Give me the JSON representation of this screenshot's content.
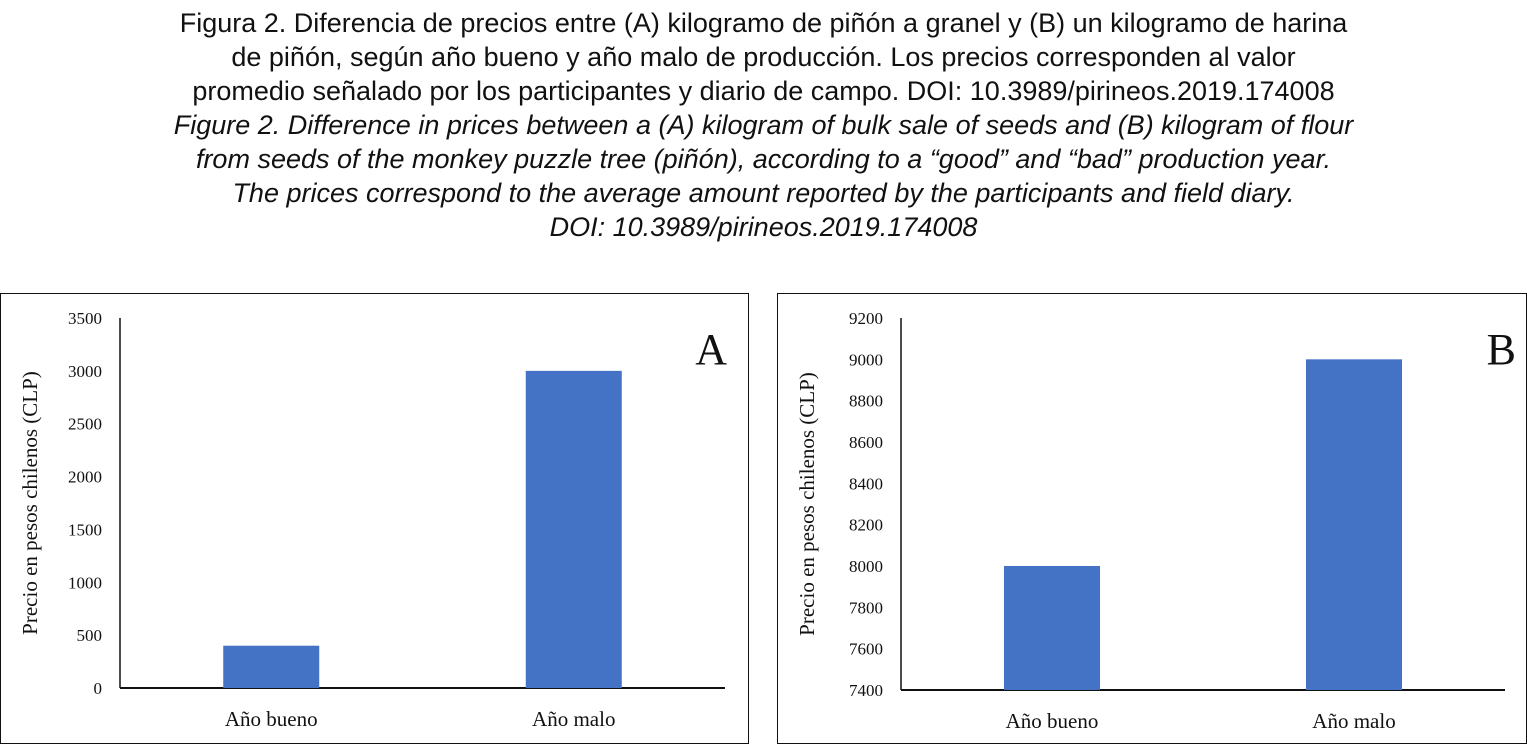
{
  "caption": {
    "es_lines": [
      "Figura 2. Diferencia de precios entre (A) kilogramo de piñón a granel y (B) un kilogramo de harina",
      "de piñón, según año bueno y año malo de producción. Los precios corresponden al valor",
      "promedio señalado por los participantes y diario de campo. DOI: 10.3989/pirineos.2019.174008"
    ],
    "en_lines": [
      "Figure 2. Difference in prices between a (A) kilogram of bulk sale of seeds and (B) kilogram of flour",
      "from seeds of the monkey puzzle tree (piñón), according to a “good” and “bad” production year.",
      "The prices correspond to the average amount reported by the participants and field diary.",
      "DOI: 10.3989/pirineos.2019.174008"
    ]
  },
  "chart_data": [
    {
      "type": "bar",
      "panel_label": "A",
      "categories": [
        "Año bueno",
        "Año malo"
      ],
      "values": [
        400,
        3000
      ],
      "ylabel": "Precio en pesos chilenos (CLP)",
      "ylim": [
        0,
        3500
      ],
      "yticks": [
        "0",
        "500",
        "1000",
        "1500",
        "2000",
        "2500",
        "3000",
        "3500"
      ],
      "bar_color": "#4472C4",
      "grid": false
    },
    {
      "type": "bar",
      "panel_label": "B",
      "categories": [
        "Año bueno",
        "Año malo"
      ],
      "values": [
        8000,
        9000
      ],
      "ylabel": "Precio en pesos chilenos (CLP)",
      "ylim": [
        7400,
        9200
      ],
      "yticks": [
        "7400",
        "7600",
        "7800",
        "8000",
        "8200",
        "8400",
        "8600",
        "8800",
        "9000",
        "9200"
      ],
      "bar_color": "#4472C4",
      "grid": false
    }
  ]
}
